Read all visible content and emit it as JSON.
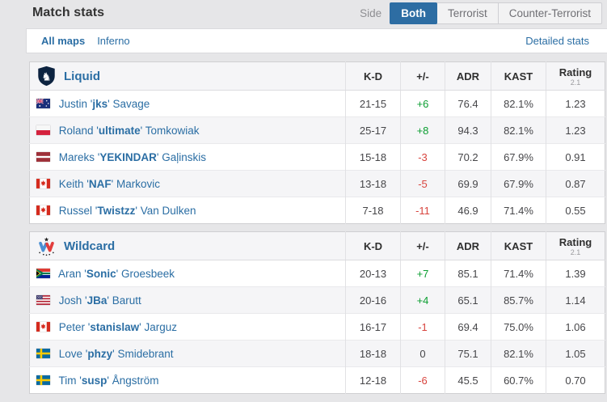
{
  "header": {
    "title": "Match stats",
    "side_label": "Side",
    "tabs": [
      {
        "label": "Both",
        "active": true
      },
      {
        "label": "Terrorist",
        "active": false
      },
      {
        "label": "Counter-Terrorist",
        "active": false
      }
    ]
  },
  "maps_bar": {
    "maps": [
      {
        "label": "All maps",
        "active": true
      },
      {
        "label": "Inferno",
        "active": false
      }
    ],
    "detailed_stats_label": "Detailed stats"
  },
  "table": {
    "columns": [
      "K-D",
      "+/-",
      "ADR",
      "KAST"
    ],
    "rating_header": {
      "label": "Rating",
      "sub": "2.1"
    }
  },
  "teams": [
    {
      "name": "Liquid",
      "players": [
        {
          "country": "Australia",
          "first": "Justin",
          "nick": "jks",
          "last": "Savage",
          "kd": "21-15",
          "plusminus": "+6",
          "adr": "76.4",
          "kast": "82.1%",
          "rating": "1.23"
        },
        {
          "country": "Poland",
          "first": "Roland",
          "nick": "ultimate",
          "last": "Tomkowiak",
          "kd": "25-17",
          "plusminus": "+8",
          "adr": "94.3",
          "kast": "82.1%",
          "rating": "1.23"
        },
        {
          "country": "Latvia",
          "first": "Mareks",
          "nick": "YEKINDAR",
          "last": "Gaļinskis",
          "kd": "15-18",
          "plusminus": "-3",
          "adr": "70.2",
          "kast": "67.9%",
          "rating": "0.91"
        },
        {
          "country": "Canada",
          "first": "Keith",
          "nick": "NAF",
          "last": "Markovic",
          "kd": "13-18",
          "plusminus": "-5",
          "adr": "69.9",
          "kast": "67.9%",
          "rating": "0.87"
        },
        {
          "country": "Canada",
          "first": "Russel",
          "nick": "Twistzz",
          "last": "Van Dulken",
          "kd": "7-18",
          "plusminus": "-11",
          "adr": "46.9",
          "kast": "71.4%",
          "rating": "0.55"
        }
      ]
    },
    {
      "name": "Wildcard",
      "players": [
        {
          "country": "South Africa",
          "first": "Aran",
          "nick": "Sonic",
          "last": "Groesbeek",
          "kd": "20-13",
          "plusminus": "+7",
          "adr": "85.1",
          "kast": "71.4%",
          "rating": "1.39"
        },
        {
          "country": "United States",
          "first": "Josh",
          "nick": "JBa",
          "last": "Barutt",
          "kd": "20-16",
          "plusminus": "+4",
          "adr": "65.1",
          "kast": "85.7%",
          "rating": "1.14"
        },
        {
          "country": "Canada",
          "first": "Peter",
          "nick": "stanislaw",
          "last": "Jarguz",
          "kd": "16-17",
          "plusminus": "-1",
          "adr": "69.4",
          "kast": "75.0%",
          "rating": "1.06"
        },
        {
          "country": "Sweden",
          "first": "Love",
          "nick": "phzy",
          "last": "Smidebrant",
          "kd": "18-18",
          "plusminus": "0",
          "adr": "75.1",
          "kast": "82.1%",
          "rating": "1.05"
        },
        {
          "country": "Sweden",
          "first": "Tim",
          "nick": "susp",
          "last": "Ångström",
          "kd": "12-18",
          "plusminus": "-6",
          "adr": "45.5",
          "kast": "60.7%",
          "rating": "0.70"
        }
      ]
    }
  ],
  "colors": {
    "accent_blue": "#2d6da3",
    "link_blue": "#2b6ea4",
    "positive_green": "#0b9e31",
    "negative_red": "#d8443e",
    "page_bg": "#e6e6e8",
    "panel_bg": "#ffffff"
  }
}
